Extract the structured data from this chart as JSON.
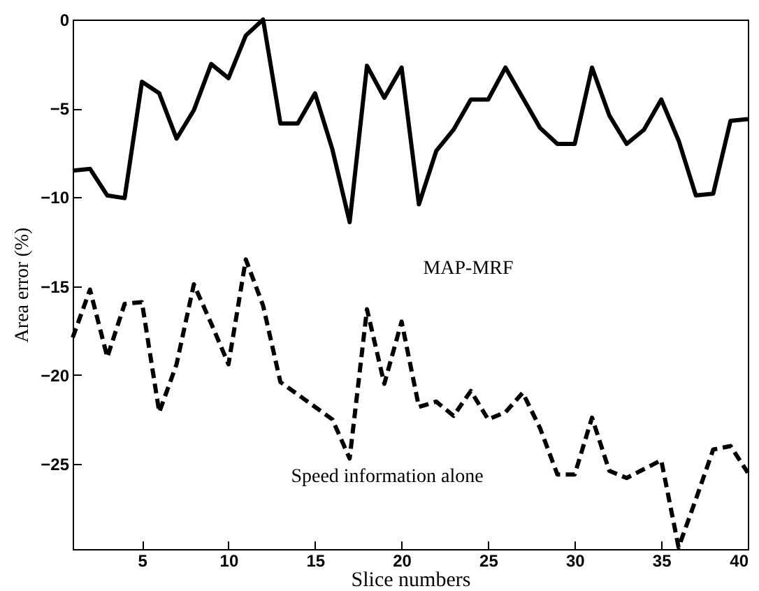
{
  "chart_data": {
    "type": "line",
    "xlabel": "Slice numbers",
    "ylabel": "Area error (%)",
    "x": [
      1,
      2,
      3,
      4,
      5,
      6,
      7,
      8,
      9,
      10,
      11,
      12,
      13,
      14,
      15,
      16,
      17,
      18,
      19,
      20,
      21,
      22,
      23,
      24,
      25,
      26,
      27,
      28,
      29,
      30,
      31,
      32,
      33,
      34,
      35,
      36,
      37,
      38,
      39,
      40
    ],
    "series": [
      {
        "color": "#000000",
        "line_style": "solid",
        "values": [
          -8.5,
          -8.4,
          -9.9,
          -10.05,
          -3.5,
          -4.15,
          -6.7,
          -5.1,
          -2.5,
          -3.3,
          -0.9,
          0,
          -5.85,
          -5.85,
          -4.15,
          -7.3,
          -11.4,
          -2.6,
          -4.4,
          -2.7,
          -10.4,
          -7.4,
          -6.2,
          -4.5,
          -4.5,
          -2.7,
          -4.4,
          -6.1,
          -7.0,
          -7.0,
          -2.7,
          -5.4,
          -7.0,
          -6.2,
          -4.5,
          -6.8,
          -9.9,
          -9.8,
          -5.7,
          -5.6
        ]
      },
      {
        "color": "#000000",
        "line_style": "dashed",
        "values": [
          -17.9,
          -15.2,
          -19.0,
          -16.0,
          -15.9,
          -22.1,
          -19.4,
          -14.9,
          -17.1,
          -19.4,
          -13.5,
          -16.1,
          -20.4,
          -21.1,
          -21.8,
          -22.5,
          -24.7,
          -16.3,
          -20.5,
          -17.0,
          -21.8,
          -21.5,
          -22.3,
          -20.9,
          -22.5,
          -22.1,
          -21.0,
          -23.0,
          -25.6,
          -25.6,
          -22.4,
          -25.4,
          -25.8,
          -25.3,
          -24.8,
          -29.7,
          -27.0,
          -24.2,
          -24.0,
          -25.5
        ]
      }
    ],
    "xlim": [
      1,
      40
    ],
    "xticks": [
      5,
      10,
      15,
      20,
      25,
      30,
      35,
      40
    ],
    "ylim": [
      -29.8,
      0
    ],
    "yticks": [
      -25,
      -20,
      -15,
      -10,
      -5,
      0
    ],
    "grid": false,
    "marker": "none",
    "annotations": [
      "MAP-MRF",
      "Speed information alone"
    ]
  }
}
